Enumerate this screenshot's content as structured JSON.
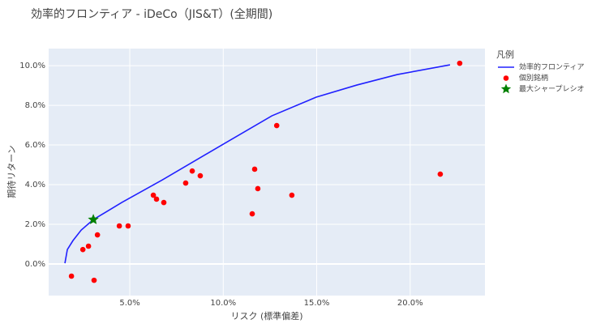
{
  "chart_data": {
    "type": "scatter",
    "title": "効率的フロンティア - iDeCo（JIS&T）(全期間)",
    "x_label": "リスク (標準偏差)",
    "y_label": "期待リターン",
    "legend_title": "凡例",
    "legend": "right",
    "grid": true,
    "xlim": [
      0.66,
      24.0
    ],
    "ylim": [
      -1.59,
      10.86
    ],
    "xticks": [
      {
        "value": 5,
        "label": "5.0%"
      },
      {
        "value": 10,
        "label": "10.0%"
      },
      {
        "value": 15,
        "label": "15.0%"
      },
      {
        "value": 20,
        "label": "20.0%"
      }
    ],
    "yticks": [
      {
        "value": 0,
        "label": "0.0%"
      },
      {
        "value": 2,
        "label": "2.0%"
      },
      {
        "value": 4,
        "label": "4.0%"
      },
      {
        "value": 6,
        "label": "6.0%"
      },
      {
        "value": 8,
        "label": "8.0%"
      },
      {
        "value": 10,
        "label": "10.0%"
      }
    ],
    "series": [
      {
        "name": "効率的フロンティア",
        "mode": "line",
        "color": "#2020ff",
        "x": [
          1.53,
          1.66,
          1.96,
          2.4,
          3.05,
          4.57,
          6.74,
          10.0,
          12.6,
          14.97,
          17.14,
          19.31,
          22.13
        ],
        "values": [
          0.04,
          0.73,
          1.18,
          1.71,
          2.24,
          3.1,
          4.24,
          6.04,
          7.47,
          8.41,
          9.02,
          9.55,
          10.04
        ]
      },
      {
        "name": "個別銘柄",
        "mode": "marker",
        "marker": "circle",
        "color": "#ff0000",
        "x": [
          22.65,
          12.86,
          11.68,
          21.61,
          8.34,
          8.77,
          7.99,
          11.85,
          13.67,
          6.26,
          6.43,
          6.82,
          4.44,
          4.91,
          11.55,
          3.27,
          2.79,
          2.49,
          1.88,
          3.09
        ],
        "values": [
          10.12,
          6.98,
          4.78,
          4.53,
          4.69,
          4.45,
          4.08,
          3.8,
          3.47,
          3.47,
          3.27,
          3.1,
          1.92,
          1.92,
          2.53,
          1.47,
          0.9,
          0.73,
          -0.61,
          -0.82
        ]
      },
      {
        "name": "最大シャープレシオ",
        "mode": "marker",
        "marker": "star",
        "color": "#008000",
        "x": [
          3.05
        ],
        "values": [
          2.24
        ]
      }
    ]
  }
}
